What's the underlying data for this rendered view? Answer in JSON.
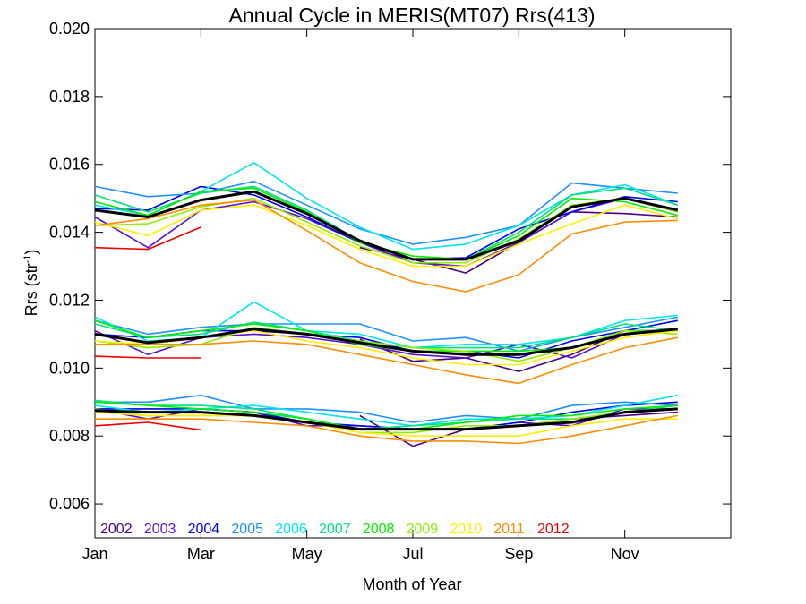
{
  "chart_data": {
    "type": "line",
    "title": "Annual Cycle in MERIS(MT07) Rrs(413)",
    "xlabel": "Month of Year",
    "ylabel": "Rrs (str",
    "ylabel_sup": "-1",
    "ylabel_tail": ")",
    "xlim": [
      1,
      13
    ],
    "ylim": [
      0.005,
      0.02
    ],
    "x_ticks": [
      1,
      3,
      5,
      7,
      9,
      11
    ],
    "x_tick_labels": [
      "Jan",
      "Mar",
      "May",
      "Jul",
      "Sep",
      "Nov"
    ],
    "y_ticks": [
      0.006,
      0.008,
      0.01,
      0.012,
      0.014,
      0.016,
      0.018,
      0.02
    ],
    "y_tick_labels": [
      "0.006",
      "0.008",
      "0.010",
      "0.012",
      "0.014",
      "0.016",
      "0.018",
      "0.020"
    ],
    "grid": false,
    "legend_position": "bottom-left",
    "x": [
      1,
      2,
      3,
      4,
      5,
      6,
      7,
      8,
      9,
      10,
      11,
      12
    ],
    "series": [
      {
        "name": "2002",
        "color": "#4b0082",
        "groups": [
          [
            null,
            null,
            null,
            null,
            null,
            0.01355,
            0.0132,
            0.0128,
            0.0137,
            0.0146,
            0.01455,
            0.01445
          ],
          [
            null,
            null,
            null,
            null,
            null,
            0.01085,
            0.0102,
            0.0103,
            0.0099,
            0.0104,
            0.0111,
            0.0111
          ],
          [
            null,
            null,
            null,
            null,
            null,
            0.0086,
            0.0077,
            0.0082,
            0.0083,
            0.0085,
            0.0086,
            0.0087
          ]
        ]
      },
      {
        "name": "2003",
        "color": "#5a10cc",
        "groups": [
          [
            0.01445,
            0.01355,
            0.01465,
            0.0149,
            0.0144,
            0.0137,
            0.0131,
            0.013,
            0.0137,
            0.0146,
            0.015,
            0.0146
          ],
          [
            0.0111,
            0.0104,
            0.0109,
            0.011,
            0.0109,
            0.0107,
            0.0104,
            0.0103,
            0.0107,
            0.0103,
            0.011,
            0.0111
          ],
          [
            0.0088,
            0.0085,
            0.0088,
            0.0087,
            0.0083,
            0.0083,
            0.0082,
            0.0082,
            0.0084,
            0.0083,
            0.0088,
            0.0088
          ]
        ]
      },
      {
        "name": "2004",
        "color": "#0000ee",
        "groups": [
          [
            0.0147,
            0.01465,
            0.01535,
            0.0151,
            0.01445,
            0.0137,
            0.0132,
            0.01325,
            0.0141,
            0.0146,
            0.01505,
            0.0149
          ],
          [
            0.011,
            0.0109,
            0.0111,
            0.0111,
            0.011,
            0.0109,
            0.0105,
            0.0105,
            0.0103,
            0.0108,
            0.0111,
            0.0114
          ],
          [
            0.0088,
            0.0088,
            0.0088,
            0.0087,
            0.0084,
            0.0083,
            0.0082,
            0.0082,
            0.0084,
            0.0087,
            0.0089,
            0.009
          ]
        ]
      },
      {
        "name": "2005",
        "color": "#1e90ff",
        "groups": [
          [
            0.01535,
            0.01505,
            0.01515,
            0.0155,
            0.0148,
            0.0141,
            0.01365,
            0.01385,
            0.0142,
            0.01545,
            0.0153,
            0.01515
          ],
          [
            0.0114,
            0.011,
            0.0112,
            0.0113,
            0.0113,
            0.0113,
            0.0108,
            0.0109,
            0.0105,
            0.0109,
            0.0112,
            0.0115
          ],
          [
            0.009,
            0.009,
            0.0092,
            0.0088,
            0.0088,
            0.0087,
            0.0084,
            0.0086,
            0.0085,
            0.0089,
            0.009,
            0.0089
          ]
        ]
      },
      {
        "name": "2006",
        "color": "#00e5ee",
        "groups": [
          [
            0.0148,
            0.0145,
            0.0152,
            0.01605,
            0.015,
            0.01415,
            0.0135,
            0.01365,
            0.0142,
            0.0151,
            0.0154,
            0.0148
          ],
          [
            0.0115,
            0.0108,
            0.0109,
            0.01195,
            0.0111,
            0.011,
            0.0106,
            0.0107,
            0.0107,
            0.0109,
            0.0114,
            0.01155
          ],
          [
            0.0089,
            0.0087,
            0.0088,
            0.0089,
            0.0087,
            0.0085,
            0.0083,
            0.0085,
            0.0085,
            0.0086,
            0.0089,
            0.0092
          ]
        ]
      },
      {
        "name": "2007",
        "color": "#00e07a",
        "groups": [
          [
            0.0151,
            0.0146,
            0.01515,
            0.01535,
            0.01465,
            0.01375,
            0.0132,
            0.0132,
            0.014,
            0.0151,
            0.0153,
            0.0148
          ],
          [
            0.0113,
            0.0109,
            0.011,
            0.01135,
            0.0111,
            0.0108,
            0.0106,
            0.0106,
            0.0106,
            0.0109,
            0.0113,
            0.0111
          ],
          [
            0.00905,
            0.0089,
            0.0089,
            0.0088,
            0.0085,
            0.0082,
            0.0083,
            0.0084,
            0.0085,
            0.0085,
            0.0087,
            0.0089
          ]
        ]
      },
      {
        "name": "2008",
        "color": "#00ee00",
        "groups": [
          [
            0.0149,
            0.0145,
            0.0152,
            0.0153,
            0.0146,
            0.0137,
            0.0133,
            0.0132,
            0.0139,
            0.015,
            0.0149,
            0.0145
          ],
          [
            0.0114,
            0.0109,
            0.0111,
            0.0113,
            0.0111,
            0.0107,
            0.0105,
            0.0105,
            0.0105,
            0.0106,
            0.0111,
            0.0111
          ],
          [
            0.009,
            0.0089,
            0.0088,
            0.0087,
            0.0085,
            0.0082,
            0.0082,
            0.0084,
            0.0086,
            0.0086,
            0.0088,
            0.0089
          ]
        ]
      },
      {
        "name": "2009",
        "color": "#8fee00",
        "groups": [
          [
            0.0142,
            0.01425,
            0.01475,
            0.015,
            0.0143,
            0.0136,
            0.0131,
            0.0131,
            0.0138,
            0.0148,
            0.015,
            0.0146
          ],
          [
            0.0108,
            0.0106,
            0.0107,
            0.0112,
            0.011,
            0.0108,
            0.0106,
            0.0105,
            0.0102,
            0.0106,
            0.0111,
            0.011
          ],
          [
            0.0088,
            0.0086,
            0.0086,
            0.0086,
            0.0084,
            0.0081,
            0.0081,
            0.0083,
            0.0083,
            0.0085,
            0.0087,
            0.0088
          ]
        ]
      },
      {
        "name": "2010",
        "color": "#ffee00",
        "groups": [
          [
            0.0143,
            0.0139,
            0.01465,
            0.0148,
            0.0142,
            0.0135,
            0.013,
            0.013,
            0.01365,
            0.01425,
            0.0148,
            0.0144
          ],
          [
            0.0108,
            0.0107,
            0.0109,
            0.0111,
            0.0108,
            0.0106,
            0.0103,
            0.0101,
            0.0101,
            0.0105,
            0.0109,
            0.0111
          ],
          [
            0.0087,
            0.0086,
            0.0086,
            0.0086,
            0.0084,
            0.0081,
            0.008,
            0.008,
            0.008,
            0.0083,
            0.0085,
            0.0085
          ]
        ]
      },
      {
        "name": "2011",
        "color": "#ff8c00",
        "groups": [
          [
            0.0142,
            0.0144,
            0.0148,
            0.01495,
            0.01405,
            0.0131,
            0.01255,
            0.01225,
            0.01275,
            0.01395,
            0.0143,
            0.01435
          ],
          [
            0.0107,
            0.0107,
            0.0107,
            0.0108,
            0.0107,
            0.0104,
            0.0101,
            0.0098,
            0.00955,
            0.0101,
            0.0106,
            0.0109
          ],
          [
            0.0085,
            0.0085,
            0.0085,
            0.0084,
            0.0083,
            0.008,
            0.00785,
            0.00785,
            0.00778,
            0.008,
            0.0083,
            0.0086
          ]
        ]
      },
      {
        "name": "2012",
        "color": "#ee0000",
        "groups": [
          [
            0.01355,
            0.0135,
            0.01415,
            null,
            null,
            null,
            null,
            null,
            null,
            null,
            null,
            null
          ],
          [
            0.01035,
            0.0103,
            0.0103,
            null,
            null,
            null,
            null,
            null,
            null,
            null,
            null,
            null
          ],
          [
            0.0083,
            0.0084,
            0.00818,
            null,
            null,
            null,
            null,
            null,
            null,
            null,
            null,
            null
          ]
        ]
      },
      {
        "name": "",
        "color": "#000000",
        "mean": true,
        "groups": [
          [
            0.01465,
            0.01445,
            0.01495,
            0.0152,
            0.01455,
            0.01375,
            0.0132,
            0.0132,
            0.01375,
            0.01475,
            0.015,
            0.01465
          ],
          [
            0.011,
            0.01075,
            0.0109,
            0.01115,
            0.011,
            0.01075,
            0.0105,
            0.0104,
            0.0104,
            0.0106,
            0.011,
            0.01115
          ],
          [
            0.00875,
            0.0087,
            0.0087,
            0.0086,
            0.0084,
            0.0082,
            0.0082,
            0.0082,
            0.0083,
            0.0084,
            0.0087,
            0.0088
          ]
        ]
      }
    ]
  }
}
